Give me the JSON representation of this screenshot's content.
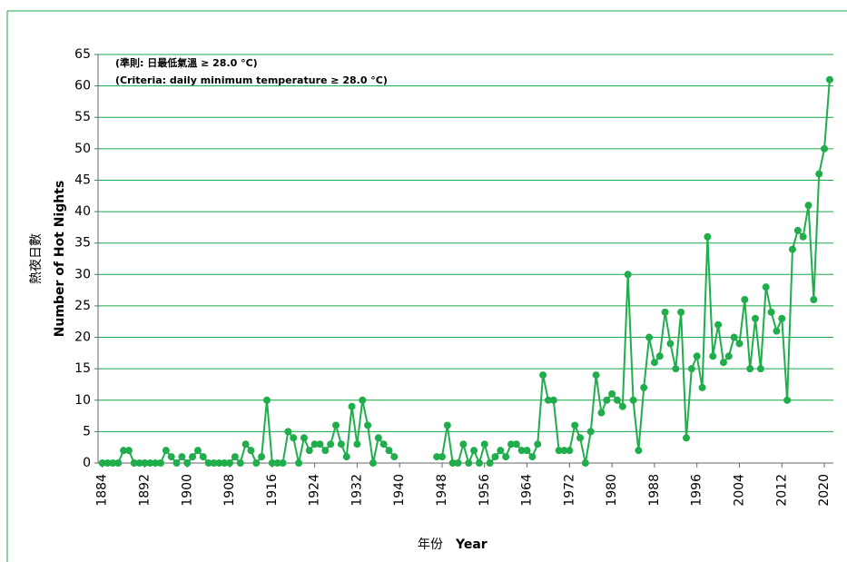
{
  "chart_data": {
    "type": "line",
    "annotations": [
      "(準則: 日最低氣溫 ≥ 28.0 °C)",
      "(Criteria: daily minimum temperature ≥ 28.0 °C)"
    ],
    "y_label": [
      "熱夜日數",
      "Number of Hot Nights"
    ],
    "x_label": [
      "年份",
      "Year"
    ],
    "x": [
      1884,
      1885,
      1886,
      1887,
      1888,
      1889,
      1890,
      1891,
      1892,
      1893,
      1894,
      1895,
      1896,
      1897,
      1898,
      1899,
      1900,
      1901,
      1902,
      1903,
      1904,
      1905,
      1906,
      1907,
      1908,
      1909,
      1910,
      1911,
      1912,
      1913,
      1914,
      1915,
      1916,
      1917,
      1918,
      1919,
      1920,
      1921,
      1922,
      1923,
      1924,
      1925,
      1926,
      1927,
      1928,
      1929,
      1930,
      1931,
      1932,
      1933,
      1934,
      1935,
      1936,
      1937,
      1938,
      1939,
      1940,
      1941,
      1942,
      1943,
      1944,
      1945,
      1946,
      1947,
      1948,
      1949,
      1950,
      1951,
      1952,
      1953,
      1954,
      1955,
      1956,
      1957,
      1958,
      1959,
      1960,
      1961,
      1962,
      1963,
      1964,
      1965,
      1966,
      1967,
      1968,
      1969,
      1970,
      1971,
      1972,
      1973,
      1974,
      1975,
      1976,
      1977,
      1978,
      1979,
      1980,
      1981,
      1982,
      1983,
      1984,
      1985,
      1986,
      1987,
      1988,
      1989,
      1990,
      1991,
      1992,
      1993,
      1994,
      1995,
      1996,
      1997,
      1998,
      1999,
      2000,
      2001,
      2002,
      2003,
      2004,
      2005,
      2006,
      2007,
      2008,
      2009,
      2010,
      2011,
      2012,
      2013,
      2014,
      2015,
      2016,
      2017,
      2018,
      2019,
      2020,
      2021
    ],
    "series": [
      {
        "color": "#1fae4b",
        "values": [
          0,
          0,
          0,
          0,
          2,
          2,
          0,
          0,
          0,
          0,
          0,
          0,
          2,
          1,
          0,
          1,
          0,
          1,
          2,
          1,
          0,
          0,
          0,
          0,
          0,
          1,
          0,
          3,
          2,
          0,
          1,
          10,
          0,
          0,
          0,
          5,
          4,
          0,
          4,
          2,
          3,
          3,
          2,
          3,
          6,
          3,
          1,
          9,
          3,
          10,
          6,
          0,
          4,
          3,
          2,
          1,
          null,
          null,
          null,
          null,
          null,
          null,
          null,
          1,
          1,
          6,
          0,
          0,
          3,
          0,
          2,
          0,
          3,
          0,
          1,
          2,
          1,
          3,
          3,
          2,
          2,
          1,
          3,
          14,
          10,
          10,
          2,
          2,
          2,
          6,
          4,
          0,
          5,
          14,
          8,
          10,
          11,
          10,
          9,
          30,
          10,
          2,
          12,
          20,
          16,
          17,
          24,
          19,
          15,
          24,
          4,
          15,
          17,
          12,
          36,
          17,
          22,
          16,
          17,
          20,
          19,
          26,
          15,
          23,
          15,
          28,
          24,
          21,
          23,
          10,
          34,
          37,
          36,
          41,
          26,
          46,
          50,
          61
        ]
      }
    ],
    "xlim": [
      1883.2,
      2021.7
    ],
    "xticks": [
      1884,
      1892,
      1900,
      1908,
      1916,
      1924,
      1932,
      1940,
      1948,
      1956,
      1964,
      1972,
      1980,
      1988,
      1996,
      2004,
      2012,
      2020
    ],
    "ylim": [
      0,
      65
    ],
    "yticks": [
      0,
      5,
      10,
      15,
      20,
      25,
      30,
      35,
      40,
      45,
      50,
      55,
      60,
      65
    ],
    "grid": true
  }
}
